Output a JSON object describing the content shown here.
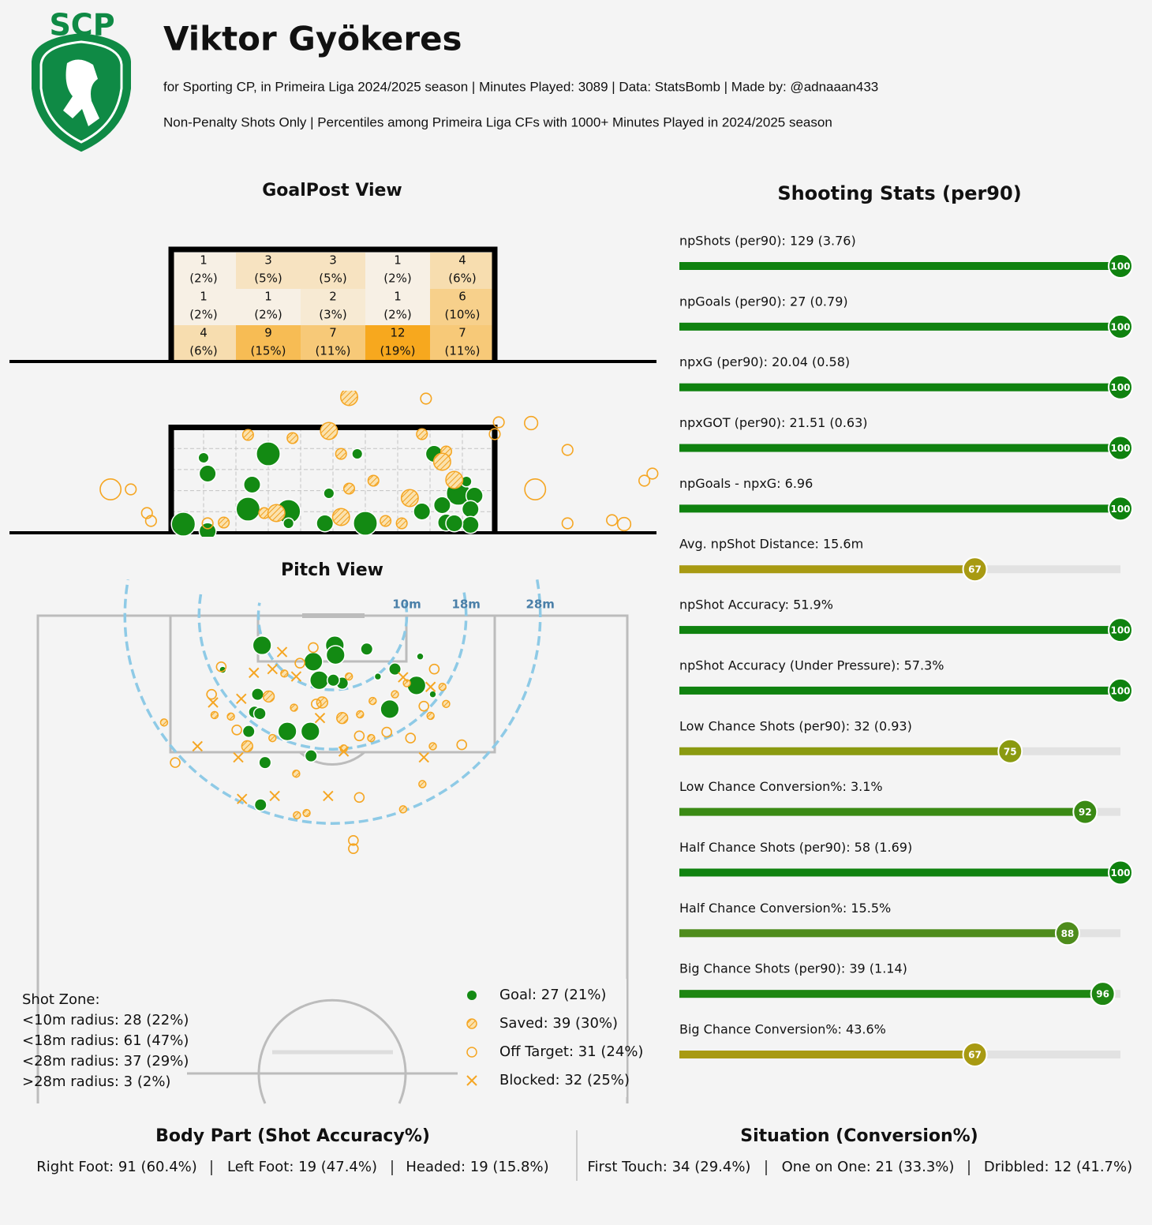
{
  "header": {
    "logo_text": "SCP",
    "title": "Viktor Gyökeres",
    "subtitle": "for Sporting CP, in Primeira Liga 2024/2025 season | Minutes Played: 3089 | Data: StatsBomb | Made by: @adnaaan433",
    "note": "Non-Penalty Shots Only | Percentiles among Primeira Liga CFs with 1000+ Minutes Played in 2024/2025 season"
  },
  "chart_data": [
    {
      "type": "heatmap",
      "title": "GoalPost View",
      "values": [
        [
          1,
          3,
          3,
          1,
          4
        ],
        [
          1,
          1,
          2,
          1,
          6
        ],
        [
          4,
          9,
          7,
          12,
          7
        ]
      ],
      "shares": [
        [
          "(2%)",
          "(5%)",
          "(5%)",
          "(2%)",
          "(6%)"
        ],
        [
          "(2%)",
          "(2%)",
          "(3%)",
          "(2%)",
          "(10%)"
        ],
        [
          "(6%)",
          "(15%)",
          "(11%)",
          "(19%)",
          "(11%)"
        ]
      ],
      "low_color": "#f7f7f7",
      "high_color": "#f7a81e"
    },
    {
      "type": "scatter",
      "xlim": [
        32,
        48
      ],
      "ylim": [
        0,
        3.46
      ],
      "series": [
        {
          "color": "#138a13",
          "marker": "filled",
          "x": [
            36.3,
            36.9,
            36.8,
            36.9,
            38.4,
            40.6,
            38.0,
            37.9,
            38.9,
            38.9,
            39.8,
            39.9,
            40.8,
            42.2,
            42.5,
            43.1,
            42.8,
            43.5,
            43.4,
            43.4,
            43.0,
            43.3,
            42.7
          ],
          "values": [
            0.22,
            0.04,
            1.9,
            1.5,
            2.0,
            2.0,
            1.22,
            0.6,
            0.54,
            0.24,
            0.24,
            1.0,
            0.24,
            0.54,
            2.0,
            1.0,
            0.26,
            0.94,
            0.6,
            0.2,
            0.24,
            1.3,
            0.7
          ],
          "sizes": [
            0.4,
            0.2,
            0.08,
            0.2,
            0.4,
            0.08,
            0.2,
            0.4,
            0.4,
            0.08,
            0.2,
            0.08,
            0.4,
            0.2,
            0.2,
            0.4,
            0.2,
            0.2,
            0.2,
            0.2,
            0.2,
            0.08,
            0.2
          ]
        },
        {
          "color": "#f5a623",
          "marker": "hatched",
          "x": [
            37.9,
            39.0,
            39.9,
            40.2,
            42.2,
            42.8,
            42.7,
            41.0,
            40.4,
            41.9,
            37.3,
            38.3,
            38.6,
            40.2,
            41.3,
            41.7,
            43.0,
            40.4
          ],
          "values": [
            2.48,
            2.4,
            2.58,
            2.0,
            2.5,
            2.06,
            1.8,
            1.32,
            1.12,
            0.88,
            0.26,
            0.5,
            0.5,
            0.4,
            0.3,
            0.24,
            1.34,
            3.44
          ],
          "sizes": [
            0.08,
            0.08,
            0.2,
            0.08,
            0.08,
            0.08,
            0.2,
            0.08,
            0.08,
            0.2,
            0.08,
            0.08,
            0.2,
            0.2,
            0.08,
            0.08,
            0.2,
            0.2
          ]
        },
        {
          "color": "#f5a623",
          "marker": "hollow",
          "x": [
            34.5,
            35.0,
            35.4,
            35.5,
            42.3,
            44.1,
            44.9,
            44.0,
            45.8,
            45.0,
            47.7,
            47.9,
            45.8,
            46.9,
            47.2,
            36.9
          ],
          "values": [
            1.1,
            1.1,
            0.5,
            0.3,
            3.4,
            2.8,
            2.78,
            2.5,
            2.1,
            1.1,
            1.32,
            1.5,
            0.24,
            0.32,
            0.22,
            0.24
          ],
          "sizes": [
            0.3,
            0.08,
            0.08,
            0.08,
            0.08,
            0.08,
            0.12,
            0.08,
            0.08,
            0.3,
            0.08,
            0.08,
            0.08,
            0.08,
            0.12,
            0.08
          ]
        }
      ]
    },
    {
      "type": "scatter",
      "title": "Pitch View",
      "xlim": [
        -39.7,
        39.7
      ],
      "ylim": [
        0,
        61.7
      ],
      "zones": [
        {
          "value": 10,
          "label": "10m"
        },
        {
          "value": 18,
          "label": "18m"
        },
        {
          "value": 28,
          "label": "28m"
        }
      ],
      "zone_color": "#8ecae6",
      "zone_summary": {
        "title": "Shot Zone:",
        "lines": [
          "<10m radius: 28 (22%)",
          "<18m radius: 61 (47%)",
          "<28m radius: 37 (29%)",
          ">28m radius: 3 (2%)"
        ]
      },
      "series": [
        {
          "name": "Goal: 27 (21%)",
          "color": "#138a13",
          "marker": "filled",
          "x": [
            -9.5,
            0.3,
            4.6,
            -2.6,
            0.4,
            11.8,
            -14.8,
            -1.8,
            1.3,
            6.1,
            8.4,
            11.3,
            -10.1,
            7.7,
            -10.5,
            -9.8,
            -11.3,
            -6.1,
            -3.0,
            -9.1,
            -2.9,
            -9.7,
            0.1,
            13.5
          ],
          "values": [
            4.0,
            4.0,
            4.5,
            6.2,
            5.3,
            5.5,
            7.3,
            8.7,
            9.1,
            8.2,
            7.2,
            9.4,
            10.6,
            12.6,
            13.0,
            13.2,
            15.6,
            15.6,
            15.6,
            19.8,
            18.9,
            25.5,
            8.7,
            10.6
          ],
          "sizes": [
            0.35,
            0.35,
            0.15,
            0.35,
            0.35,
            0.05,
            0.05,
            0.35,
            0.15,
            0.05,
            0.15,
            0.35,
            0.15,
            0.35,
            0.15,
            0.15,
            0.15,
            0.35,
            0.35,
            0.15,
            0.15,
            0.15,
            0.15,
            0.05
          ]
        },
        {
          "name": "Saved: 39 (30%)",
          "color": "#f5a623",
          "marker": "hatched",
          "x": [
            -13.7,
            -8.6,
            -5.2,
            -1.4,
            1.3,
            3.7,
            5.4,
            8.4,
            10.0,
            13.2,
            15.3,
            14.8,
            -11.5,
            -8.1,
            1.5,
            5.2,
            13.5,
            -4.9,
            12.1,
            9.5,
            -3.5,
            -4.8,
            -22.7,
            -15.9,
            2.2,
            -6.5
          ],
          "values": [
            13.6,
            10.9,
            12.4,
            11.7,
            13.8,
            13.3,
            11.5,
            10.6,
            9.1,
            13.5,
            11.9,
            9.6,
            17.6,
            16.5,
            17.9,
            16.5,
            17.6,
            21.3,
            22.7,
            26.1,
            26.6,
            26.9,
            14.4,
            13.4,
            8.2,
            7.8
          ],
          "sizes": [
            0.05,
            0.12,
            0.05,
            0.12,
            0.12,
            0.05,
            0.05,
            0.05,
            0.05,
            0.05,
            0.05,
            0.05,
            0.12,
            0.05,
            0.05,
            0.05,
            0.05,
            0.05,
            0.05,
            0.05,
            0.05,
            0.05,
            0.05,
            0.05,
            0.05,
            0.05
          ]
        },
        {
          "name": "Off Target: 31 (24%)",
          "color": "#f5a623",
          "marker": "hollow",
          "x": [
            -15.0,
            -16.3,
            -2.2,
            3.6,
            7.3,
            10.5,
            17.4,
            -21.2,
            3.6,
            2.8,
            2.8,
            -12.9,
            -2.6,
            -4.4,
            13.7,
            12.3
          ],
          "values": [
            6.9,
            10.6,
            11.9,
            16.2,
            15.7,
            16.5,
            17.4,
            19.8,
            24.5,
            30.3,
            31.4,
            15.4,
            4.3,
            6.4,
            7.2,
            12.2
          ]
        },
        {
          "name": "Blocked: 32 (25%)",
          "color": "#f5a623",
          "marker": "cross",
          "x": [
            -6.8,
            -10.6,
            -8.1,
            -4.9,
            -16.1,
            -18.2,
            -12.7,
            1.5,
            12.3,
            -12.2,
            -7.8,
            -0.6,
            -1.7,
            9.5,
            -12.3,
            13.2
          ],
          "values": [
            4.9,
            7.7,
            7.2,
            8.2,
            11.7,
            17.6,
            19.1,
            18.3,
            19.1,
            24.7,
            24.3,
            24.3,
            13.8,
            8.3,
            11.2,
            9.6
          ]
        }
      ]
    },
    {
      "type": "bar",
      "title": "Shooting Stats (per90)",
      "xlim": [
        0,
        100
      ],
      "track_color": "#e2e2e2",
      "categories": [
        "npShots (per90): 129 (3.76)",
        "npGoals (per90): 27 (0.79)",
        "npxG (per90): 20.04 (0.58)",
        "npxGOT (per90): 21.51 (0.63)",
        "npGoals - npxG: 6.96",
        "Avg. npShot Distance: 15.6m",
        "npShot Accuracy: 51.9%",
        "npShot Accuracy (Under Pressure): 57.3%",
        "Low Chance Shots (per90): 32 (0.93)",
        "Low Chance Conversion%: 3.1%",
        "Half Chance Shots (per90): 58 (1.69)",
        "Half Chance Conversion%: 15.5%",
        "Big Chance Shots (per90): 39 (1.14)",
        "Big Chance Conversion%: 43.6%"
      ],
      "values": [
        100,
        100,
        100,
        100,
        100,
        67,
        100,
        100,
        75,
        92,
        100,
        88,
        96,
        67
      ],
      "colors": [
        "#0f820f",
        "#0f820f",
        "#0f820f",
        "#0f820f",
        "#0f820f",
        "#a89a12",
        "#0f820f",
        "#0f820f",
        "#8a9a10",
        "#3a8a14",
        "#0f820f",
        "#4e8c1c",
        "#1e8612",
        "#a89a12"
      ]
    }
  ],
  "footer": {
    "body_part": {
      "title": "Body Part (Shot Accuracy%)",
      "items": [
        "Right Foot: 91 (60.4%)",
        "Left Foot: 19 (47.4%)",
        "Headed: 19 (15.8%)"
      ]
    },
    "situation": {
      "title": "Situation (Conversion%)",
      "items": [
        "First Touch: 34 (29.4%)",
        "One on One: 21 (33.3%)",
        "Dribbled: 12 (41.7%)"
      ]
    }
  }
}
